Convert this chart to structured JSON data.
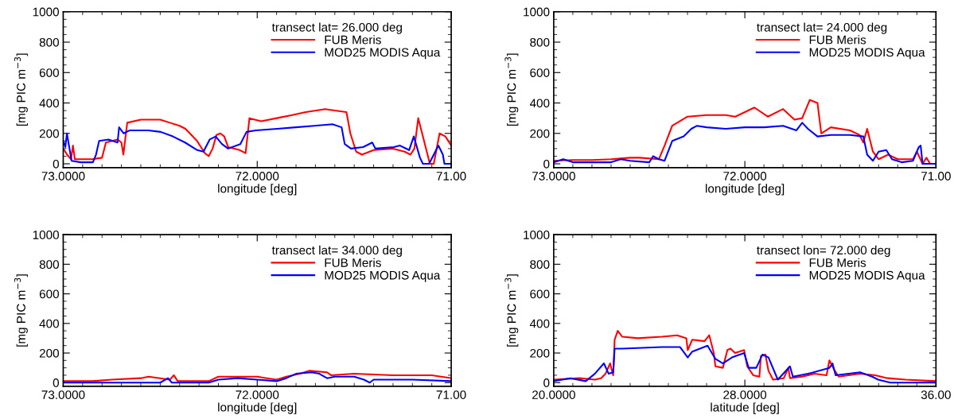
{
  "chart_data": [
    {
      "type": "line",
      "xlabel": "longitude [deg]",
      "ylabel": "[mg PIC m$^{−3}$]",
      "legend_title": "transect lat= 26.000 deg",
      "legend": "top right",
      "grid": false,
      "xlim": [
        73,
        71
      ],
      "xticks": [
        {
          "value": 73,
          "label": "73.0000"
        },
        {
          "value": 72,
          "label": "72.0000"
        },
        {
          "value": 71,
          "label": "71.00"
        }
      ],
      "ylim": [
        -25,
        1000
      ],
      "yticks": [
        0,
        200,
        400,
        600,
        800,
        1000
      ],
      "series": [
        {
          "name": "FUB Meris",
          "color": "#ff0000",
          "x": [
            73.0,
            72.98,
            72.96,
            72.95,
            72.94,
            72.85,
            72.8,
            72.78,
            72.72,
            72.7,
            72.69,
            72.67,
            72.6,
            72.5,
            72.45,
            72.4,
            72.37,
            72.31,
            72.27,
            72.25,
            72.23,
            72.21,
            72.19,
            72.17,
            72.15,
            72.09,
            72.06,
            72.04,
            71.98,
            71.9,
            71.82,
            71.75,
            71.65,
            71.6,
            71.54,
            71.52,
            71.49,
            71.46,
            71.4,
            71.3,
            71.24,
            71.21,
            71.19,
            71.17,
            71.14,
            71.11,
            71.09,
            71.06,
            71.03,
            71.0
          ],
          "values": [
            100,
            60,
            30,
            120,
            30,
            30,
            40,
            140,
            160,
            140,
            60,
            270,
            290,
            290,
            270,
            250,
            230,
            150,
            70,
            50,
            100,
            190,
            200,
            180,
            110,
            90,
            70,
            300,
            280,
            300,
            320,
            340,
            360,
            350,
            340,
            200,
            80,
            60,
            90,
            100,
            80,
            60,
            100,
            300,
            150,
            0,
            0,
            200,
            180,
            120
          ]
        },
        {
          "name": "MOD25 MODIS Aqua",
          "color": "#0000ff",
          "x": [
            73.0,
            72.989,
            72.981,
            72.965,
            72.957,
            72.91,
            72.847,
            72.831,
            72.815,
            72.767,
            72.72,
            72.712,
            72.688,
            72.657,
            72.562,
            72.498,
            72.435,
            72.372,
            72.309,
            72.277,
            72.245,
            72.214,
            72.182,
            72.15,
            72.087,
            72.055,
            72.008,
            71.897,
            71.802,
            71.707,
            71.612,
            71.565,
            71.549,
            71.517,
            71.454,
            71.407,
            71.391,
            71.296,
            71.264,
            71.217,
            71.193,
            71.161,
            71.146,
            71.114,
            71.09,
            71.066,
            71.043,
            71.035,
            71.0
          ],
          "values": [
            150,
            110,
            200,
            80,
            20,
            10,
            10,
            60,
            150,
            160,
            140,
            240,
            200,
            220,
            220,
            210,
            180,
            140,
            90,
            80,
            160,
            180,
            130,
            100,
            130,
            210,
            220,
            230,
            240,
            250,
            260,
            240,
            130,
            100,
            110,
            140,
            100,
            110,
            120,
            90,
            180,
            40,
            0,
            0,
            60,
            120,
            60,
            0,
            0
          ]
        }
      ]
    },
    {
      "type": "line",
      "xlabel": "longitude [deg]",
      "ylabel": "[mg PIC m$^{−3}$]",
      "legend_title": "transect lat= 24.000 deg",
      "legend": "top right",
      "grid": false,
      "xlim": [
        73,
        71
      ],
      "xticks": [
        {
          "value": 73,
          "label": "73.0000"
        },
        {
          "value": 72,
          "label": "72.0000"
        },
        {
          "value": 71,
          "label": "71.00"
        }
      ],
      "ylim": [
        -25,
        1000
      ],
      "yticks": [
        0,
        200,
        400,
        600,
        800,
        1000
      ],
      "series": [
        {
          "name": "FUB Meris",
          "color": "#ff0000",
          "x": [
            73.0,
            72.9,
            72.8,
            72.7,
            72.6,
            72.55,
            72.45,
            72.42,
            72.38,
            72.3,
            72.2,
            72.1,
            72.05,
            71.95,
            71.88,
            71.8,
            71.74,
            71.7,
            71.66,
            71.62,
            71.6,
            71.55,
            71.45,
            71.4,
            71.38,
            71.36,
            71.33,
            71.3,
            71.25,
            71.2,
            71.12,
            71.1,
            71.07,
            71.05,
            71.03,
            71.0
          ],
          "values": [
            20,
            25,
            25,
            30,
            40,
            40,
            30,
            120,
            250,
            310,
            320,
            320,
            310,
            370,
            310,
            360,
            290,
            300,
            420,
            400,
            200,
            240,
            220,
            190,
            140,
            230,
            80,
            30,
            60,
            30,
            30,
            80,
            0,
            40,
            0,
            0
          ]
        },
        {
          "name": "MOD25 MODIS Aqua",
          "color": "#0000ff",
          "x": [
            73.0,
            72.95,
            72.9,
            72.7,
            72.65,
            72.6,
            72.5,
            72.48,
            72.45,
            72.42,
            72.38,
            72.32,
            72.28,
            72.25,
            72.2,
            72.1,
            72.0,
            71.9,
            71.8,
            71.73,
            71.7,
            71.67,
            71.62,
            71.55,
            71.45,
            71.38,
            71.36,
            71.33,
            71.3,
            71.26,
            71.23,
            71.18,
            71.12,
            71.09,
            71.08,
            71.07,
            71.06,
            71.0
          ],
          "values": [
            10,
            30,
            10,
            10,
            30,
            20,
            10,
            50,
            30,
            20,
            150,
            180,
            230,
            250,
            240,
            230,
            240,
            240,
            250,
            220,
            270,
            230,
            180,
            190,
            190,
            180,
            60,
            20,
            80,
            90,
            30,
            10,
            20,
            110,
            120,
            0,
            0,
            0
          ]
        }
      ]
    },
    {
      "type": "line",
      "xlabel": "longitude [deg]",
      "ylabel": "[mg PIC m$^{−3}$]",
      "legend_title": "transect lat= 34.000 deg",
      "legend": "top right",
      "grid": false,
      "xlim": [
        73,
        71
      ],
      "xticks": [
        {
          "value": 73,
          "label": "73.0000"
        },
        {
          "value": 72,
          "label": "72.0000"
        },
        {
          "value": 71,
          "label": "71.00"
        }
      ],
      "ylim": [
        -25,
        1000
      ],
      "yticks": [
        0,
        200,
        400,
        600,
        800,
        1000
      ],
      "series": [
        {
          "name": "FUB Meris",
          "color": "#ff0000",
          "x": [
            73.0,
            72.85,
            72.75,
            72.6,
            72.56,
            72.45,
            72.43,
            72.41,
            72.25,
            72.2,
            72.0,
            71.95,
            71.9,
            71.85,
            71.78,
            71.73,
            71.64,
            71.62,
            71.5,
            71.3,
            71.1,
            71.0
          ],
          "values": [
            10,
            10,
            20,
            30,
            40,
            20,
            50,
            10,
            10,
            40,
            40,
            30,
            20,
            40,
            60,
            80,
            70,
            50,
            60,
            50,
            50,
            30
          ]
        },
        {
          "name": "MOD25 MODIS Aqua",
          "color": "#0000ff",
          "x": [
            73.0,
            72.5,
            72.46,
            72.44,
            72.25,
            72.2,
            72.1,
            72.0,
            71.9,
            71.85,
            71.8,
            71.72,
            71.68,
            71.64,
            71.6,
            71.5,
            71.45,
            71.42,
            71.4,
            71.3,
            71.2,
            71.0
          ],
          "values": [
            0,
            0,
            30,
            0,
            0,
            20,
            30,
            20,
            10,
            30,
            60,
            70,
            60,
            30,
            40,
            40,
            20,
            0,
            20,
            20,
            20,
            10
          ]
        }
      ]
    },
    {
      "type": "line",
      "xlabel": "latitude [deg]",
      "ylabel": "[mg PIC m$^{−3}$]",
      "legend_title": "transect lon= 72.000 deg",
      "legend": "top right",
      "grid": false,
      "xlim": [
        20,
        36
      ],
      "xticks": [
        {
          "value": 20,
          "label": "20.0000"
        },
        {
          "value": 28,
          "label": "28.0000"
        },
        {
          "value": 36,
          "label": "36.00"
        }
      ],
      "ylim": [
        -25,
        1000
      ],
      "yticks": [
        0,
        200,
        400,
        600,
        800,
        1000
      ],
      "series": [
        {
          "name": "FUB Meris",
          "color": "#ff0000",
          "x": [
            20.0,
            21.08,
            21.72,
            21.98,
            22.17,
            22.36,
            22.49,
            22.55,
            22.68,
            22.87,
            23.52,
            24.53,
            25.17,
            25.55,
            25.61,
            25.8,
            26.31,
            26.51,
            26.7,
            26.77,
            27.08,
            27.27,
            27.4,
            27.59,
            27.97,
            28.1,
            28.35,
            28.61,
            28.67,
            28.86,
            28.99,
            29.18,
            29.63,
            29.82,
            29.89,
            30.4,
            30.91,
            31.42,
            31.54,
            31.73,
            31.93,
            32.82,
            33.46,
            33.97,
            34.73,
            36.0
          ],
          "values": [
            20,
            30,
            20,
            30,
            60,
            130,
            50,
            290,
            350,
            310,
            300,
            310,
            320,
            300,
            220,
            290,
            280,
            320,
            200,
            110,
            100,
            220,
            230,
            200,
            220,
            110,
            50,
            40,
            180,
            190,
            80,
            20,
            30,
            100,
            30,
            40,
            60,
            50,
            150,
            90,
            40,
            60,
            50,
            30,
            20,
            10
          ]
        },
        {
          "name": "MOD25 MODIS Aqua",
          "color": "#0000ff",
          "x": [
            20.0,
            20.7,
            21.34,
            21.72,
            22.1,
            22.3,
            22.49,
            22.55,
            22.87,
            24.53,
            25.29,
            25.61,
            25.8,
            26.44,
            26.77,
            27.08,
            27.46,
            27.97,
            28.16,
            28.48,
            28.74,
            28.99,
            29.38,
            29.89,
            30.01,
            30.65,
            31.54,
            31.67,
            31.8,
            32.82,
            33.33,
            33.58,
            34.09,
            36.0
          ],
          "values": [
            10,
            30,
            10,
            60,
            130,
            60,
            70,
            230,
            230,
            240,
            240,
            170,
            210,
            250,
            160,
            130,
            170,
            200,
            100,
            100,
            190,
            170,
            20,
            110,
            40,
            60,
            100,
            130,
            50,
            70,
            40,
            20,
            0,
            0
          ]
        }
      ]
    }
  ]
}
